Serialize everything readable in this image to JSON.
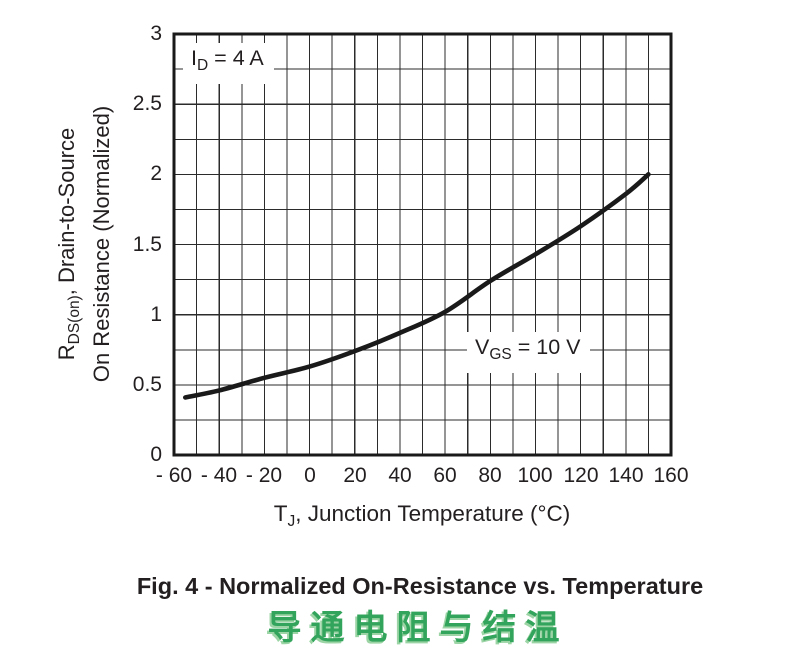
{
  "colors": {
    "text": "#231f20",
    "grid": "#2b2b2b",
    "axis_border": "#1a1a1a",
    "curve": "#1a1a1a",
    "background": "#ffffff",
    "chinese_green": "#33a45b",
    "chinese_green_light": "#9cd4a5"
  },
  "chart_data": {
    "type": "line",
    "title": "Fig. 4 - Normalized On-Resistance vs. Temperature",
    "xlabel": {
      "pre": "T",
      "sub": "J",
      "post": ", Junction Temperature (°C)"
    },
    "ylabel": {
      "pre": "R",
      "sub": "DS(on)",
      "post": ", Drain-to-Source",
      "line2": "On Resistance (Normalized)"
    },
    "xlim": [
      -60,
      160
    ],
    "ylim": [
      0,
      3
    ],
    "x_grid_step": 10,
    "y_grid_step": 0.25,
    "grid": "on",
    "legend": "none",
    "x_ticks": [
      {
        "value": -60,
        "label": "- 60"
      },
      {
        "value": -40,
        "label": "- 40"
      },
      {
        "value": -20,
        "label": "- 20"
      },
      {
        "value": 0,
        "label": "0"
      },
      {
        "value": 20,
        "label": "20"
      },
      {
        "value": 40,
        "label": "40"
      },
      {
        "value": 60,
        "label": "60"
      },
      {
        "value": 80,
        "label": "80"
      },
      {
        "value": 100,
        "label": "100"
      },
      {
        "value": 120,
        "label": "120"
      },
      {
        "value": 140,
        "label": "140"
      },
      {
        "value": 160,
        "label": "160"
      }
    ],
    "y_ticks": [
      {
        "value": 3,
        "label": "3"
      },
      {
        "value": 2.5,
        "label": "2.5"
      },
      {
        "value": 2,
        "label": "2"
      },
      {
        "value": 1.5,
        "label": "1.5"
      },
      {
        "value": 1,
        "label": "1"
      },
      {
        "value": 0.5,
        "label": "0.5"
      },
      {
        "value": 0,
        "label": "0"
      }
    ],
    "annotations": [
      {
        "pre": "I",
        "sub": "D",
        "post": " = 4 A"
      },
      {
        "pre": "V",
        "sub": "GS",
        "post": " = 10 V"
      }
    ],
    "series": [
      {
        "name": "Normalized RDS(on)",
        "points": [
          [
            -55,
            0.41
          ],
          [
            -40,
            0.46
          ],
          [
            -20,
            0.55
          ],
          [
            0,
            0.63
          ],
          [
            20,
            0.74
          ],
          [
            40,
            0.87
          ],
          [
            60,
            1.02
          ],
          [
            80,
            1.24
          ],
          [
            100,
            1.43
          ],
          [
            120,
            1.63
          ],
          [
            140,
            1.86
          ],
          [
            150,
            2.0
          ]
        ]
      }
    ]
  },
  "caption": {
    "figure": "Fig. 4 - Normalized On-Resistance vs. Temperature",
    "chinese": "导通电阻与结温"
  }
}
